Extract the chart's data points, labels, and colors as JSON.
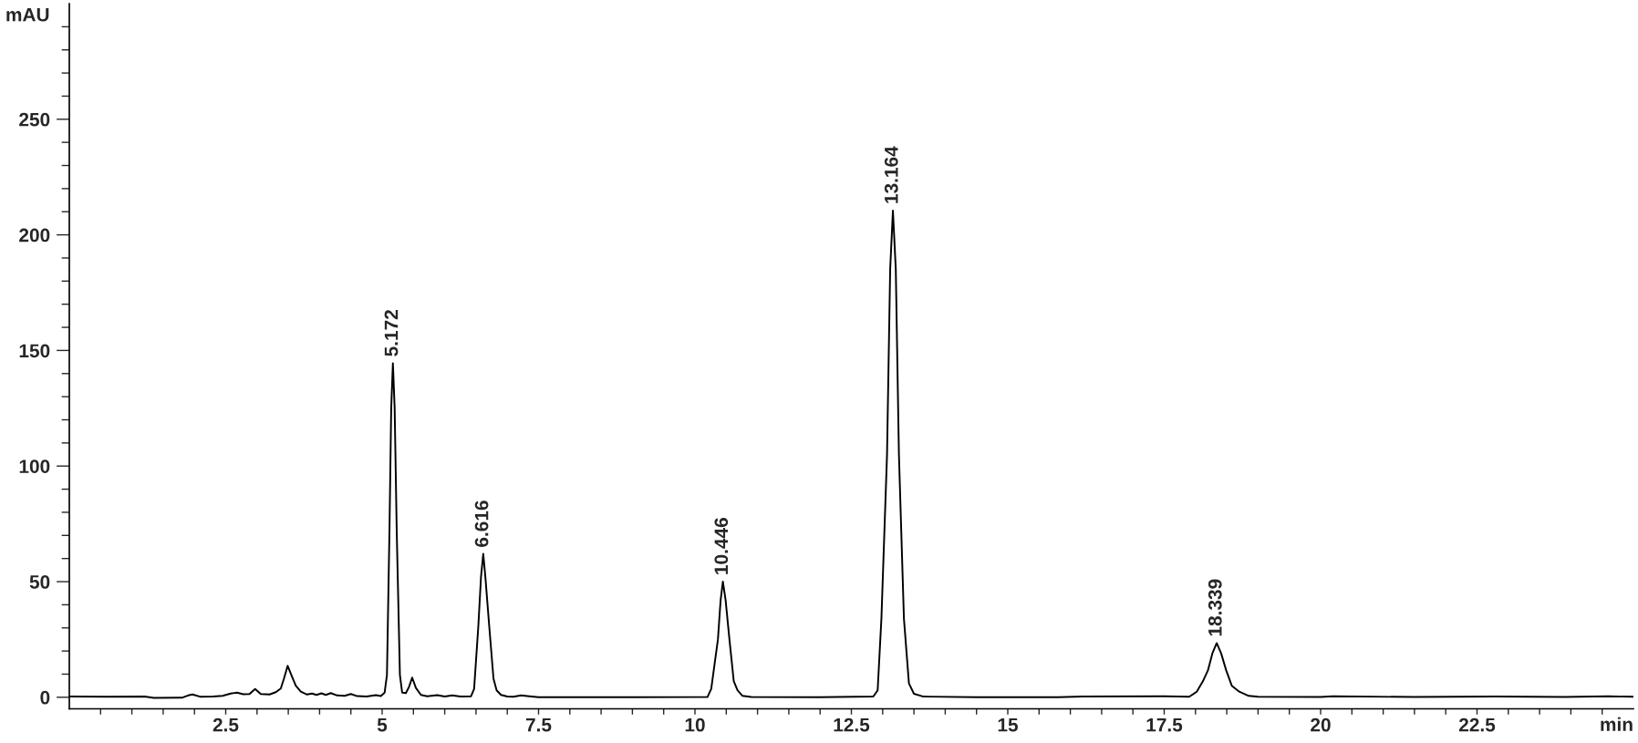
{
  "chart_data": {
    "type": "line",
    "xlabel": "min",
    "ylabel": "mAU",
    "x": [
      0.0,
      0.6,
      1.2,
      1.35,
      1.8,
      1.9,
      1.97,
      2.1,
      2.3,
      2.45,
      2.58,
      2.68,
      2.78,
      2.88,
      2.97,
      3.06,
      3.2,
      3.3,
      3.38,
      3.43,
      3.49,
      3.55,
      3.62,
      3.7,
      3.8,
      3.88,
      3.95,
      4.03,
      4.1,
      4.18,
      4.28,
      4.4,
      4.5,
      4.6,
      4.75,
      4.9,
      4.98,
      5.04,
      5.077,
      5.117,
      5.145,
      5.172,
      5.2,
      5.233,
      5.284,
      5.32,
      5.38,
      5.43,
      5.48,
      5.54,
      5.62,
      5.72,
      5.88,
      6.0,
      6.12,
      6.25,
      6.42,
      6.47,
      6.538,
      6.58,
      6.616,
      6.65,
      6.711,
      6.78,
      6.83,
      6.9,
      7.0,
      7.1,
      7.22,
      7.35,
      7.5,
      9.0,
      10.2,
      10.26,
      10.367,
      10.41,
      10.446,
      10.49,
      10.551,
      10.62,
      10.68,
      10.76,
      10.9,
      12.0,
      12.85,
      12.92,
      12.98,
      13.07,
      13.12,
      13.164,
      13.21,
      13.26,
      13.34,
      13.42,
      13.5,
      13.65,
      14.5,
      15.8,
      16.2,
      17.5,
      17.9,
      18.02,
      18.12,
      18.2,
      18.27,
      18.339,
      18.41,
      18.49,
      18.58,
      18.7,
      18.85,
      19.0,
      20.0,
      20.2,
      21.5,
      22.8,
      23.9,
      24.6,
      25.0
    ],
    "series": [
      {
        "color": "#000000",
        "values": [
          0.3,
          0.2,
          0.3,
          -0.3,
          -0.2,
          0.8,
          1.2,
          0.2,
          0.3,
          0.6,
          1.6,
          2.0,
          1.3,
          1.4,
          3.6,
          1.4,
          1.2,
          2.2,
          3.8,
          8.0,
          13.6,
          9.5,
          5.0,
          2.4,
          1.2,
          1.6,
          1.0,
          1.7,
          1.0,
          1.8,
          0.8,
          0.6,
          1.4,
          0.5,
          0.3,
          0.9,
          0.5,
          2.0,
          9.6,
          72,
          125,
          144.5,
          125,
          72,
          9.6,
          2.0,
          1.8,
          4.5,
          8.5,
          4.0,
          1.0,
          0.4,
          0.9,
          0.3,
          0.8,
          0.3,
          0.4,
          3.6,
          31,
          52,
          62,
          52,
          31,
          8,
          3,
          1.0,
          0.3,
          0.2,
          0.8,
          0.4,
          0.0,
          0.0,
          0.1,
          3.6,
          25,
          42,
          50,
          42,
          25,
          7,
          3,
          0.6,
          0.1,
          0.0,
          0.3,
          3,
          34,
          105,
          185,
          210.5,
          185,
          105,
          34,
          6,
          1.5,
          0.3,
          0.0,
          0.0,
          0.3,
          0.4,
          0.2,
          2.4,
          7,
          11.7,
          19,
          23.4,
          19,
          11.7,
          5,
          2.4,
          0.6,
          0.2,
          0.1,
          0.4,
          0.1,
          0.3,
          0.1,
          0.4,
          0.2
        ]
      }
    ],
    "xlim": [
      0,
      25
    ],
    "ylim": [
      -5,
      300
    ],
    "xticks": [
      {
        "value": 0.5,
        "label": null
      },
      {
        "value": 1,
        "label": null
      },
      {
        "value": 1.5,
        "label": null
      },
      {
        "value": 2,
        "label": null
      },
      2.5,
      {
        "value": 3,
        "label": null
      },
      {
        "value": 3.5,
        "label": null
      },
      {
        "value": 4,
        "label": null
      },
      {
        "value": 4.5,
        "label": null
      },
      5,
      {
        "value": 5.5,
        "label": null
      },
      {
        "value": 6,
        "label": null
      },
      {
        "value": 6.5,
        "label": null
      },
      {
        "value": 7,
        "label": null
      },
      7.5,
      {
        "value": 8,
        "label": null
      },
      {
        "value": 8.5,
        "label": null
      },
      {
        "value": 9,
        "label": null
      },
      {
        "value": 9.5,
        "label": null
      },
      10,
      {
        "value": 10.5,
        "label": null
      },
      {
        "value": 11,
        "label": null
      },
      {
        "value": 11.5,
        "label": null
      },
      {
        "value": 12,
        "label": null
      },
      12.5,
      {
        "value": 13,
        "label": null
      },
      {
        "value": 13.5,
        "label": null
      },
      {
        "value": 14,
        "label": null
      },
      {
        "value": 14.5,
        "label": null
      },
      15,
      {
        "value": 15.5,
        "label": null
      },
      {
        "value": 16,
        "label": null
      },
      {
        "value": 16.5,
        "label": null
      },
      {
        "value": 17,
        "label": null
      },
      17.5,
      {
        "value": 18,
        "label": null
      },
      {
        "value": 18.5,
        "label": null
      },
      {
        "value": 19,
        "label": null
      },
      {
        "value": 19.5,
        "label": null
      },
      20,
      {
        "value": 20.5,
        "label": null
      },
      {
        "value": 21,
        "label": null
      },
      {
        "value": 21.5,
        "label": null
      },
      {
        "value": 22,
        "label": null
      },
      22.5,
      {
        "value": 23,
        "label": null
      },
      {
        "value": 23.5,
        "label": null
      },
      {
        "value": 24,
        "label": null
      },
      {
        "value": 24.5,
        "label": null
      }
    ],
    "yticks": [
      0,
      {
        "value": 10,
        "label": null
      },
      {
        "value": 20,
        "label": null
      },
      {
        "value": 30,
        "label": null
      },
      {
        "value": 40,
        "label": null
      },
      50,
      {
        "value": 60,
        "label": null
      },
      {
        "value": 70,
        "label": null
      },
      {
        "value": 80,
        "label": null
      },
      {
        "value": 90,
        "label": null
      },
      100,
      {
        "value": 110,
        "label": null
      },
      {
        "value": 120,
        "label": null
      },
      {
        "value": 130,
        "label": null
      },
      {
        "value": 140,
        "label": null
      },
      150,
      {
        "value": 160,
        "label": null
      },
      {
        "value": 170,
        "label": null
      },
      {
        "value": 180,
        "label": null
      },
      {
        "value": 190,
        "label": null
      },
      200,
      {
        "value": 210,
        "label": null
      },
      {
        "value": 220,
        "label": null
      },
      {
        "value": 230,
        "label": null
      },
      {
        "value": 240,
        "label": null
      },
      250,
      {
        "value": 260,
        "label": null
      },
      {
        "value": 270,
        "label": null
      },
      {
        "value": 280,
        "label": null
      },
      {
        "value": 290,
        "label": null
      }
    ],
    "annotations": [
      {
        "text": "5.172",
        "x": 5.172,
        "y": 144.5
      },
      {
        "text": "6.616",
        "x": 6.616,
        "y": 62
      },
      {
        "text": "10.446",
        "x": 10.446,
        "y": 50
      },
      {
        "text": "13.164",
        "x": 13.164,
        "y": 210.5
      },
      {
        "text": "18.339",
        "x": 18.339,
        "y": 23.4
      }
    ]
  }
}
